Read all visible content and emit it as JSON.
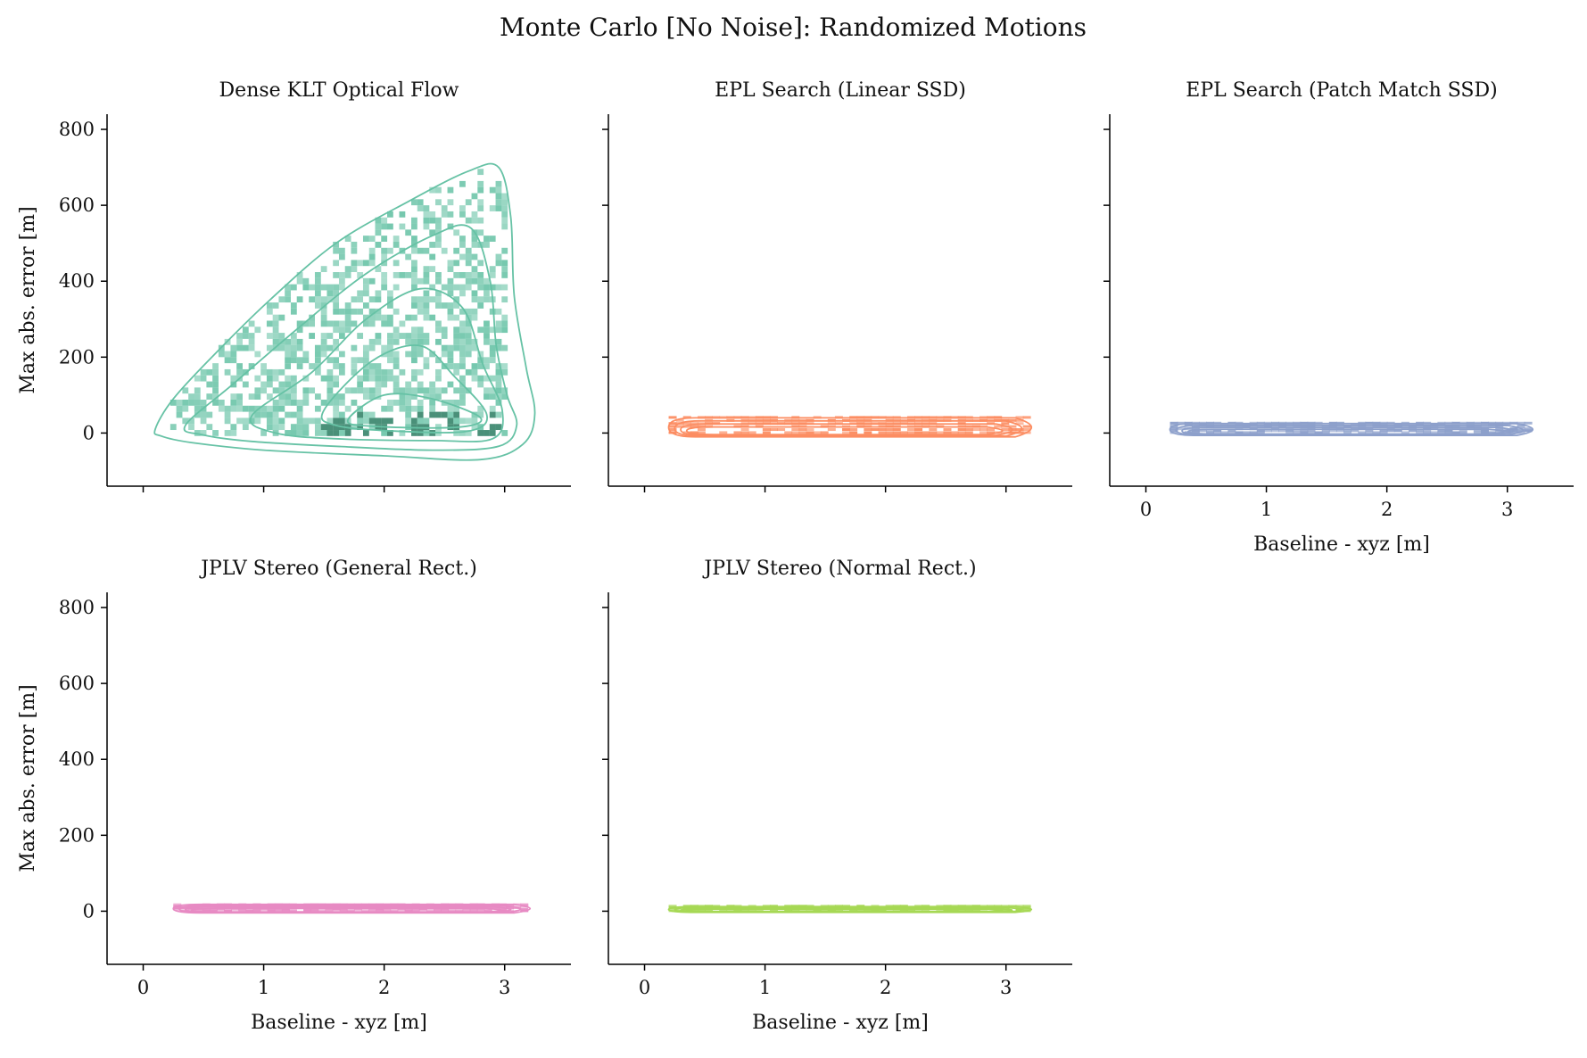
{
  "figure_title": "Monte Carlo [No Noise]: Randomized Motions",
  "chart_data": [
    {
      "type": "heatmap",
      "title": "Dense KLT Optical Flow",
      "xlabel": "",
      "ylabel": "Max abs. error [m]",
      "xlim": [
        -0.3,
        3.55
      ],
      "ylim": [
        -140,
        840
      ],
      "xticks": [
        0,
        1,
        2,
        3
      ],
      "yticks": [
        0,
        200,
        400,
        600,
        800
      ],
      "xtick_labels": [],
      "ytick_labels": [
        "0",
        "200",
        "400",
        "600",
        "800"
      ],
      "color": "#66c2a5",
      "dark_color": "#2a7d62",
      "kde_contours": [
        [
          [
            0.1,
            10
          ],
          [
            0.25,
            90
          ],
          [
            0.6,
            210
          ],
          [
            1.05,
            350
          ],
          [
            1.6,
            500
          ],
          [
            2.2,
            610
          ],
          [
            2.7,
            690
          ],
          [
            2.95,
            700
          ],
          [
            3.05,
            570
          ],
          [
            3.08,
            360
          ],
          [
            3.18,
            170
          ],
          [
            3.25,
            50
          ],
          [
            3.15,
            -30
          ],
          [
            2.8,
            -70
          ],
          [
            2.0,
            -60
          ],
          [
            1.0,
            -45
          ],
          [
            0.4,
            -25
          ],
          [
            0.15,
            -8
          ]
        ],
        [
          [
            0.35,
            20
          ],
          [
            0.75,
            130
          ],
          [
            1.3,
            280
          ],
          [
            1.85,
            420
          ],
          [
            2.4,
            520
          ],
          [
            2.72,
            540
          ],
          [
            2.88,
            400
          ],
          [
            2.93,
            230
          ],
          [
            3.02,
            100
          ],
          [
            3.1,
            20
          ],
          [
            2.95,
            -35
          ],
          [
            2.4,
            -45
          ],
          [
            1.6,
            -35
          ],
          [
            0.9,
            -22
          ],
          [
            0.5,
            -5
          ]
        ],
        [
          [
            0.9,
            45
          ],
          [
            1.4,
            160
          ],
          [
            1.85,
            300
          ],
          [
            2.3,
            380
          ],
          [
            2.65,
            330
          ],
          [
            2.82,
            180
          ],
          [
            2.98,
            60
          ],
          [
            2.9,
            -15
          ],
          [
            2.4,
            -20
          ],
          [
            1.6,
            -15
          ],
          [
            1.1,
            0
          ]
        ],
        [
          [
            1.5,
            60
          ],
          [
            1.9,
            190
          ],
          [
            2.3,
            230
          ],
          [
            2.58,
            150
          ],
          [
            2.85,
            50
          ],
          [
            2.7,
            5
          ],
          [
            2.1,
            5
          ],
          [
            1.6,
            20
          ]
        ],
        [
          [
            1.7,
            35
          ],
          [
            2.0,
            100
          ],
          [
            2.4,
            90
          ],
          [
            2.8,
            40
          ],
          [
            2.6,
            15
          ],
          [
            1.9,
            18
          ]
        ]
      ]
    },
    {
      "type": "heatmap",
      "title": "EPL Search (Linear SSD)",
      "xlabel": "",
      "ylabel": "",
      "xlim": [
        -0.3,
        3.55
      ],
      "ylim": [
        -140,
        840
      ],
      "xticks": [
        0,
        1,
        2,
        3
      ],
      "yticks": [
        0,
        200,
        400,
        600,
        800
      ],
      "xtick_labels": [],
      "ytick_labels": [],
      "color": "#fc8d62",
      "x_range": [
        0.2,
        3.3
      ],
      "y_range": [
        0,
        40
      ]
    },
    {
      "type": "heatmap",
      "title": "EPL Search (Patch Match SSD)",
      "xlabel": "Baseline - xyz [m]",
      "ylabel": "",
      "xlim": [
        -0.3,
        3.55
      ],
      "ylim": [
        -140,
        840
      ],
      "xticks": [
        0,
        1,
        2,
        3
      ],
      "yticks": [
        0,
        200,
        400,
        600,
        800
      ],
      "xtick_labels": [
        "0",
        "1",
        "2",
        "3"
      ],
      "ytick_labels": [],
      "color": "#8da0cb",
      "x_range": [
        0.2,
        3.3
      ],
      "y_range": [
        0,
        25
      ]
    },
    {
      "type": "heatmap",
      "title": "JPLV Stereo (General Rect.)",
      "xlabel": "Baseline - xyz [m]",
      "ylabel": "Max abs. error [m]",
      "xlim": [
        -0.3,
        3.55
      ],
      "ylim": [
        -140,
        840
      ],
      "xticks": [
        0,
        1,
        2,
        3
      ],
      "yticks": [
        0,
        200,
        400,
        600,
        800
      ],
      "xtick_labels": [
        "0",
        "1",
        "2",
        "3"
      ],
      "ytick_labels": [
        "0",
        "200",
        "400",
        "600",
        "800"
      ],
      "color": "#e78ac3",
      "x_range": [
        0.25,
        3.3
      ],
      "y_range": [
        0,
        18
      ]
    },
    {
      "type": "heatmap",
      "title": "JPLV Stereo (Normal Rect.)",
      "xlabel": "Baseline - xyz [m]",
      "ylabel": "",
      "xlim": [
        -0.3,
        3.55
      ],
      "ylim": [
        -140,
        840
      ],
      "xticks": [
        0,
        1,
        2,
        3
      ],
      "yticks": [
        0,
        200,
        400,
        600,
        800
      ],
      "xtick_labels": [
        "0",
        "1",
        "2",
        "3"
      ],
      "ytick_labels": [],
      "color": "#a6d854",
      "x_range": [
        0.2,
        3.3
      ],
      "y_range": [
        0,
        12
      ]
    }
  ]
}
